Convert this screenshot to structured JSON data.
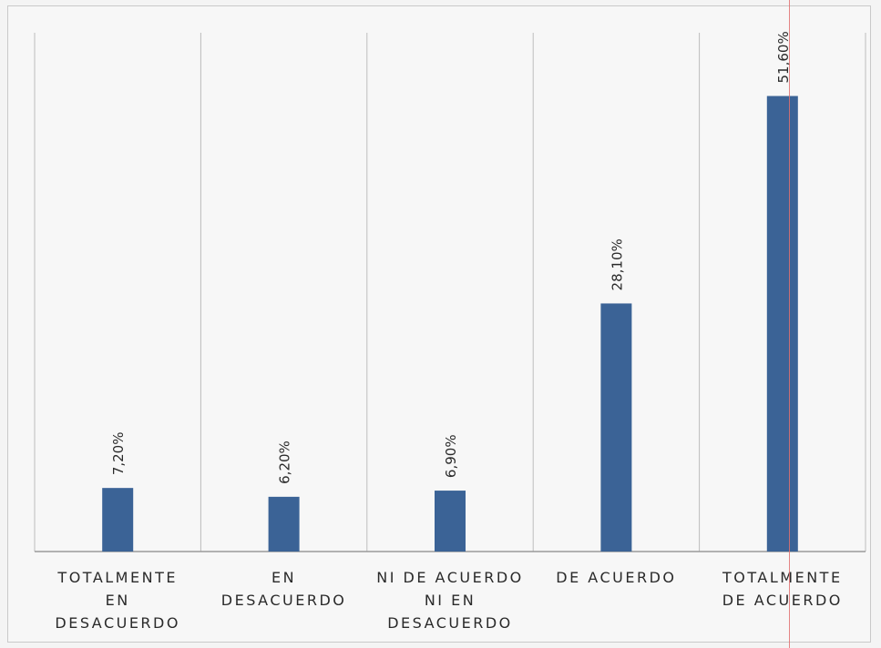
{
  "chart_data": {
    "type": "bar",
    "categories": [
      "TOTALMENTE EN DESACUERDO",
      "EN DESACUERDO",
      "NI DE ACUERDO NI EN DESACUERDO",
      "DE ACUERDO",
      "TOTALMENTE DE ACUERDO"
    ],
    "category_label_lines": [
      [
        "TOTALMENTE",
        "EN",
        "DESACUERDO"
      ],
      [
        "EN",
        "DESACUERDO"
      ],
      [
        "NI DE ACUERDO",
        "NI EN",
        "DESACUERDO"
      ],
      [
        "DE ACUERDO"
      ],
      [
        "TOTALMENTE",
        "DE ACUERDO"
      ]
    ],
    "values": [
      7.2,
      6.2,
      6.9,
      28.1,
      51.6
    ],
    "data_labels": [
      "7,20%",
      "6,20%",
      "6,90%",
      "28,10%",
      "51,60%"
    ],
    "unit": "%",
    "ylim": [
      0,
      60
    ],
    "grid": "vertical separators",
    "legend": "none",
    "bar_color": "#3b6396",
    "gridline_color": "#bcbcbc",
    "axis_color": "#9a9a9a",
    "label_color": "#2a2a2a",
    "background": "#f7f7f7"
  }
}
